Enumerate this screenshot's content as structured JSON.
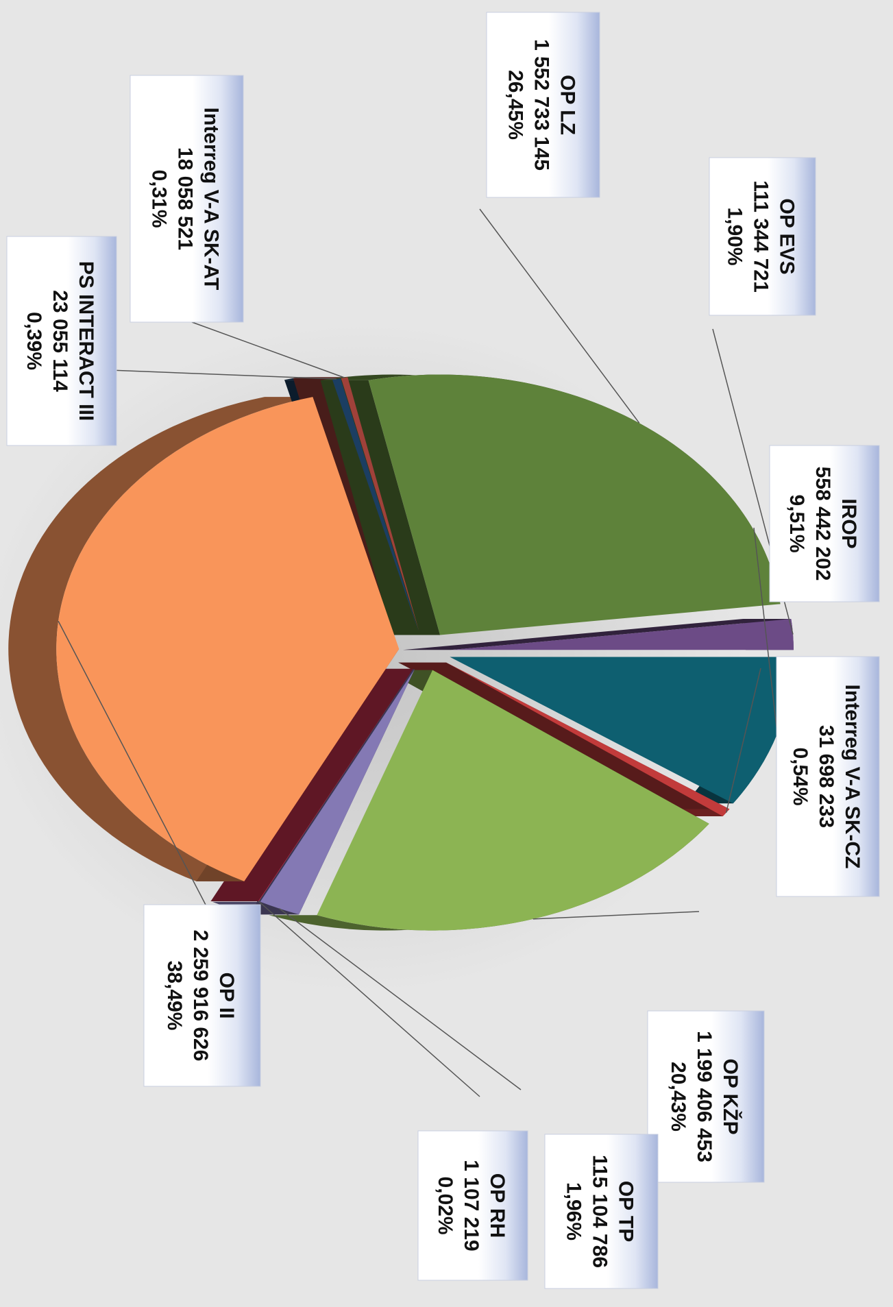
{
  "chart_data": {
    "type": "pie",
    "orientation": "rotated-90-clockwise",
    "title": "",
    "slices": [
      {
        "name": "IROP",
        "value": "558 442 202",
        "percent": 9.51,
        "percent_label": "9,51%",
        "color": "#0e5f70"
      },
      {
        "name": "Interreg V-A SK-CZ",
        "value": "31 698 233",
        "percent": 0.54,
        "percent_label": "0,54%",
        "color": "#c23b3b"
      },
      {
        "name": "OP KŽP",
        "value": "1 199 406 453",
        "percent": 20.43,
        "percent_label": "20,43%",
        "color": "#8cb453"
      },
      {
        "name": "OP TP",
        "value": "115 104 786",
        "percent": 1.96,
        "percent_label": "1,96%",
        "color": "#8479b4"
      },
      {
        "name": "OP RH",
        "value": "1 107 219",
        "percent": 0.02,
        "percent_label": "0,02%",
        "color": "#d43452"
      },
      {
        "name": "OP II",
        "value": "2 259 916 626",
        "percent": 38.49,
        "percent_label": "38,49%",
        "color": "#f9955a"
      },
      {
        "name": "PS INTERACT III",
        "value": "23 055 114",
        "percent": 0.39,
        "percent_label": "0,39%",
        "color": "#1b3e62"
      },
      {
        "name": "Interreg V-A SK-AT",
        "value": "18 058 521",
        "percent": 0.31,
        "percent_label": "0,31%",
        "color": "#a0413a"
      },
      {
        "name": "OP LZ",
        "value": "1 552 733 145",
        "percent": 26.45,
        "percent_label": "26,45%",
        "color": "#5e823a"
      },
      {
        "name": "OP EVS",
        "value": "111 344 721",
        "percent": 1.9,
        "percent_label": "1,90%",
        "color": "#6c4b86"
      }
    ]
  }
}
